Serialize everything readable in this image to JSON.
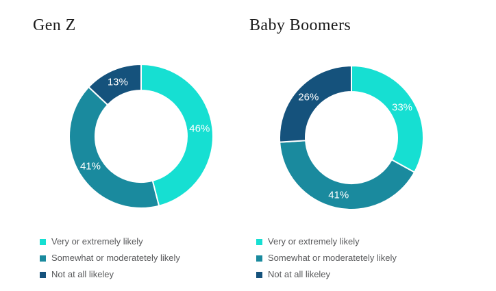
{
  "page": {
    "background": "#ffffff"
  },
  "colors": {
    "very_likely": "#16dfd2",
    "somewhat_likely": "#1a8a9e",
    "not_at_all": "#15527c",
    "segment_separator": "#ffffff",
    "title_text": "#1a1a1a",
    "legend_text": "#58595b",
    "data_label_text": "#ffffff"
  },
  "chart_data": [
    {
      "type": "pie",
      "subtype": "donut",
      "title": "Gen Z",
      "labels": [
        "Very or extremely likely",
        "Somewhat or moderatetely likely",
        "Not at all likeley"
      ],
      "values": [
        46,
        41,
        13
      ],
      "data_labels": [
        "46%",
        "41%",
        "13%"
      ],
      "unit": "%",
      "colors": [
        "#16dfd2",
        "#1a8a9e",
        "#15527c"
      ],
      "start_angle_deg": 0,
      "direction": "clockwise",
      "inner_radius_ratio": 0.64,
      "legend_position": "bottom-left"
    },
    {
      "type": "pie",
      "subtype": "donut",
      "title": "Baby Boomers",
      "labels": [
        "Very or extremely likely",
        "Somewhat or moderatetely likely",
        "Not at all likeley"
      ],
      "values": [
        33,
        41,
        26
      ],
      "data_labels": [
        "33%",
        "41%",
        "26%"
      ],
      "unit": "%",
      "colors": [
        "#16dfd2",
        "#1a8a9e",
        "#15527c"
      ],
      "start_angle_deg": 0,
      "direction": "clockwise",
      "inner_radius_ratio": 0.64,
      "legend_position": "bottom-left"
    }
  ]
}
